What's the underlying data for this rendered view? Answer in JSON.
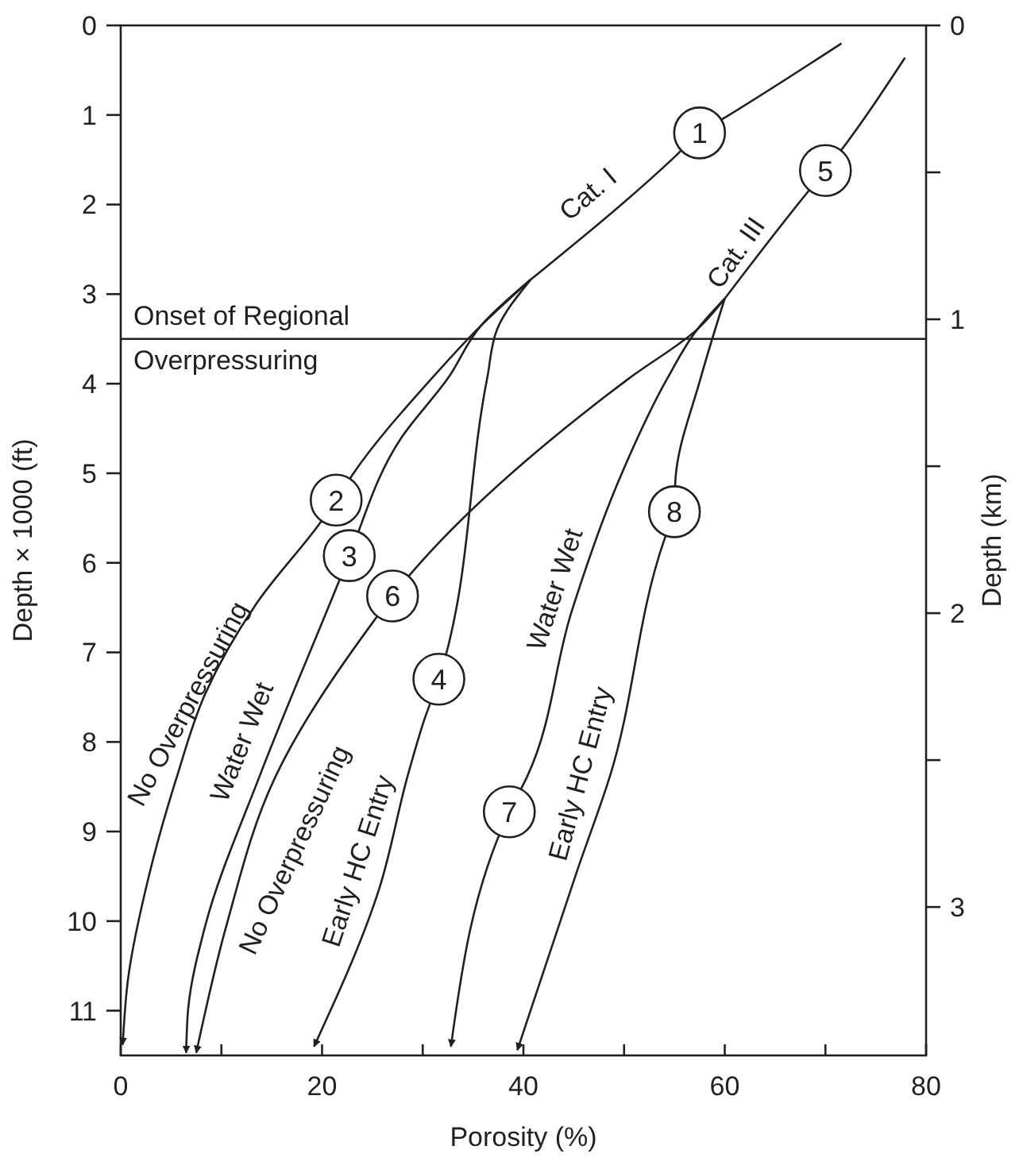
{
  "chart_data": {
    "type": "line",
    "xlabel": "Porosity (%)",
    "ylabel": "Depth × 1000 (ft)",
    "y2label": "Depth (km)",
    "xlim": [
      0,
      80
    ],
    "xticks": [
      0,
      {
        "value": 10,
        "label": null
      },
      20,
      {
        "value": 30,
        "label": null
      },
      40,
      {
        "value": 50,
        "label": null
      },
      60,
      {
        "value": 70,
        "label": null
      },
      80
    ],
    "ylim": [
      11.5,
      0
    ],
    "yticks": [
      0,
      1,
      2,
      3,
      4,
      5,
      6,
      7,
      8,
      9,
      10,
      11
    ],
    "y2lim": [
      3.505,
      0
    ],
    "y2ticks": [
      0,
      {
        "value": 0.5,
        "label": null
      },
      1,
      {
        "value": 1.5,
        "label": null
      },
      2,
      {
        "value": 2.5,
        "label": null
      },
      3
    ],
    "grid": false,
    "marker": "none",
    "line_style": "solid",
    "ref_lines": [
      {
        "axis": "y",
        "value": 3.5,
        "label": "Onset of Regional Overpressuring",
        "color": "#231f20"
      }
    ],
    "series": [
      {
        "color": "#231f20",
        "x": [
          71.6,
          60,
          57.5,
          55.1,
          40.7
        ],
        "values": [
          0.2,
          1.03,
          1.2,
          1.46,
          2.84
        ]
      },
      {
        "color": "#231f20",
        "x": [
          40.7,
          35.8,
          30.9,
          23,
          21.4,
          19.7,
          13.7,
          8.4,
          5.6,
          2.9,
          0.7,
          0.2
        ],
        "values": [
          2.84,
          3.35,
          3.94,
          5.02,
          5.3,
          5.57,
          6.42,
          7.46,
          8.38,
          9.45,
          10.67,
          11.38
        ]
      },
      {
        "color": "#231f20",
        "x": [
          40.7,
          35.8,
          32.5,
          27.9,
          22.7,
          21.7,
          13.8,
          8.4,
          6.7,
          6.5
        ],
        "values": [
          2.84,
          3.35,
          3.94,
          4.6,
          5.92,
          6.2,
          8.38,
          10.05,
          10.98,
          11.47
        ]
      },
      {
        "color": "#231f20",
        "x": [
          40.7,
          37.4,
          36.4,
          31.6,
          30.1,
          28.5,
          25.7,
          19.2
        ],
        "values": [
          2.84,
          3.39,
          3.94,
          7.3,
          7.77,
          8.38,
          9.63,
          11.4
        ]
      },
      {
        "color": "#231f20",
        "x": [
          77.9,
          70,
          68.1,
          60
        ],
        "values": [
          0.36,
          1.62,
          1.88,
          3.05
        ]
      },
      {
        "color": "#231f20",
        "x": [
          60,
          57.3,
          50.5,
          27,
          25.2,
          15.4,
          10.5,
          7.5
        ],
        "values": [
          3.05,
          3.39,
          3.94,
          6.37,
          6.64,
          8.38,
          10.05,
          11.47
        ]
      },
      {
        "color": "#231f20",
        "x": [
          60,
          57.3,
          54.3,
          49.7,
          44.8,
          40.4,
          38.6,
          32.8
        ],
        "values": [
          3.05,
          3.39,
          3.94,
          5.02,
          6.54,
          8.38,
          8.78,
          11.4
        ]
      },
      {
        "color": "#231f20",
        "x": [
          60,
          57.6,
          55.1,
          55,
          54,
          48.6,
          45.3,
          39.4
        ],
        "values": [
          3.05,
          3.94,
          5.07,
          5.43,
          5.74,
          8.38,
          9.45,
          11.44
        ]
      }
    ],
    "annotations": [
      {
        "text": "1",
        "x": 57.5,
        "y": 1.2
      },
      {
        "text": "2",
        "x": 21.4,
        "y": 5.3
      },
      {
        "text": "3",
        "x": 22.7,
        "y": 5.92
      },
      {
        "text": "4",
        "x": 31.6,
        "y": 7.3
      },
      {
        "text": "5",
        "x": 70,
        "y": 1.62
      },
      {
        "text": "6",
        "x": 27,
        "y": 6.37
      },
      {
        "text": "7",
        "x": 38.6,
        "y": 8.78
      },
      {
        "text": "8",
        "x": 55,
        "y": 5.43
      },
      "Cat. I",
      "Cat. III",
      "No Overpressuring",
      "Water Wet",
      "No Overpressuring",
      "Early HC Entry",
      "Water Wet",
      "Early HC Entry"
    ]
  }
}
